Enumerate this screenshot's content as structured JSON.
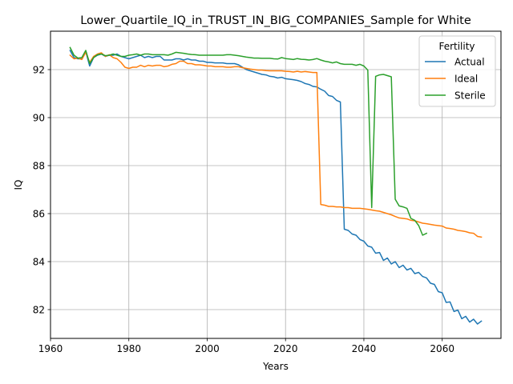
{
  "chart_data": {
    "type": "line",
    "title": "Lower_Quartile_IQ_in_TRUST_IN_BIG_COMPANIES_Sample for White",
    "xlabel": "Years",
    "ylabel": "IQ",
    "xlim": [
      1960,
      2075
    ],
    "ylim": [
      80.8,
      93.6
    ],
    "xticks": [
      1960,
      1980,
      2000,
      2020,
      2040,
      2060
    ],
    "yticks": [
      82,
      84,
      86,
      88,
      90,
      92
    ],
    "grid": true,
    "legend": {
      "title": "Fertility",
      "placement": "top-right"
    },
    "series": [
      {
        "name": "Actual",
        "color": "#1f77b4",
        "x": [
          1965,
          1966,
          1967,
          1968,
          1969,
          1970,
          1971,
          1972,
          1973,
          1974,
          1975,
          1976,
          1977,
          1978,
          1979,
          1980,
          1981,
          1982,
          1983,
          1984,
          1985,
          1986,
          1987,
          1988,
          1989,
          1990,
          1991,
          1992,
          1993,
          1994,
          1995,
          1996,
          1997,
          1998,
          1999,
          2000,
          2001,
          2002,
          2003,
          2004,
          2005,
          2006,
          2007,
          2008,
          2009,
          2010,
          2011,
          2012,
          2013,
          2014,
          2015,
          2016,
          2017,
          2018,
          2019,
          2020,
          2021,
          2022,
          2023,
          2024,
          2025,
          2026,
          2027,
          2028,
          2029,
          2030,
          2031,
          2032,
          2033,
          2034,
          2035,
          2036,
          2037,
          2038,
          2039,
          2040,
          2041,
          2042,
          2043,
          2044,
          2045,
          2046,
          2047,
          2048,
          2049,
          2050,
          2051,
          2052,
          2053,
          2054,
          2055,
          2056,
          2057,
          2058,
          2059,
          2060,
          2061,
          2062,
          2063,
          2064,
          2065,
          2066,
          2067,
          2068,
          2069,
          2070
        ],
        "y": [
          92.8,
          92.5,
          92.45,
          92.45,
          92.75,
          92.15,
          92.5,
          92.6,
          92.65,
          92.55,
          92.6,
          92.6,
          92.65,
          92.55,
          92.5,
          92.45,
          92.5,
          92.55,
          92.6,
          92.5,
          92.55,
          92.5,
          92.55,
          92.55,
          92.4,
          92.4,
          92.4,
          92.45,
          92.45,
          92.4,
          92.45,
          92.4,
          92.4,
          92.35,
          92.35,
          92.3,
          92.3,
          92.28,
          92.28,
          92.28,
          92.25,
          92.25,
          92.25,
          92.2,
          92.1,
          92.0,
          91.95,
          91.9,
          91.85,
          91.8,
          91.78,
          91.72,
          91.7,
          91.65,
          91.68,
          91.62,
          91.6,
          91.58,
          91.55,
          91.5,
          91.42,
          91.38,
          91.3,
          91.28,
          91.18,
          91.1,
          90.92,
          90.88,
          90.72,
          90.65,
          85.35,
          85.3,
          85.15,
          85.1,
          84.92,
          84.85,
          84.65,
          84.6,
          84.35,
          84.38,
          84.05,
          84.15,
          83.9,
          84.0,
          83.75,
          83.85,
          83.65,
          83.72,
          83.5,
          83.55,
          83.38,
          83.32,
          83.1,
          83.05,
          82.75,
          82.7,
          82.3,
          82.32,
          81.92,
          81.98,
          81.62,
          81.72,
          81.48,
          81.6,
          81.4,
          81.52
        ]
      },
      {
        "name": "Ideal",
        "color": "#ff7f0e",
        "x": [
          1965,
          1966,
          1967,
          1968,
          1969,
          1970,
          1971,
          1972,
          1973,
          1974,
          1975,
          1976,
          1977,
          1978,
          1979,
          1980,
          1981,
          1982,
          1983,
          1984,
          1985,
          1986,
          1987,
          1988,
          1989,
          1990,
          1991,
          1992,
          1993,
          1994,
          1995,
          1996,
          1997,
          1998,
          1999,
          2000,
          2001,
          2002,
          2003,
          2004,
          2005,
          2006,
          2007,
          2008,
          2009,
          2010,
          2011,
          2012,
          2013,
          2014,
          2015,
          2016,
          2017,
          2018,
          2019,
          2020,
          2021,
          2022,
          2023,
          2024,
          2025,
          2026,
          2027,
          2028,
          2029,
          2030,
          2031,
          2032,
          2033,
          2034,
          2035,
          2036,
          2037,
          2038,
          2039,
          2040,
          2041,
          2042,
          2043,
          2044,
          2045,
          2046,
          2047,
          2048,
          2049,
          2050,
          2051,
          2052,
          2053,
          2054,
          2055,
          2056,
          2057,
          2058,
          2059,
          2060,
          2061,
          2062,
          2063,
          2064,
          2065,
          2066,
          2067,
          2068,
          2069,
          2070
        ],
        "y": [
          92.6,
          92.45,
          92.48,
          92.42,
          92.72,
          92.3,
          92.55,
          92.65,
          92.7,
          92.55,
          92.62,
          92.5,
          92.45,
          92.3,
          92.1,
          92.05,
          92.1,
          92.1,
          92.18,
          92.12,
          92.18,
          92.15,
          92.18,
          92.18,
          92.12,
          92.15,
          92.22,
          92.25,
          92.35,
          92.35,
          92.25,
          92.25,
          92.2,
          92.2,
          92.18,
          92.15,
          92.15,
          92.12,
          92.12,
          92.12,
          92.1,
          92.1,
          92.12,
          92.12,
          92.08,
          92.05,
          92.02,
          92.0,
          91.98,
          91.98,
          91.96,
          91.95,
          91.95,
          91.95,
          91.95,
          91.93,
          91.92,
          91.9,
          91.93,
          91.9,
          91.92,
          91.9,
          91.88,
          91.88,
          86.38,
          86.35,
          86.3,
          86.3,
          86.28,
          86.28,
          86.25,
          86.25,
          86.22,
          86.22,
          86.22,
          86.2,
          86.18,
          86.15,
          86.12,
          86.1,
          86.05,
          86.0,
          85.95,
          85.88,
          85.82,
          85.8,
          85.78,
          85.72,
          85.7,
          85.65,
          85.6,
          85.58,
          85.55,
          85.52,
          85.5,
          85.48,
          85.4,
          85.38,
          85.35,
          85.3,
          85.28,
          85.25,
          85.2,
          85.18,
          85.05,
          85.02
        ]
      },
      {
        "name": "Sterile",
        "color": "#2ca02c",
        "x": [
          1965,
          1966,
          1967,
          1968,
          1969,
          1970,
          1971,
          1972,
          1973,
          1974,
          1975,
          1976,
          1977,
          1978,
          1979,
          1980,
          1981,
          1982,
          1983,
          1984,
          1985,
          1986,
          1987,
          1988,
          1989,
          1990,
          1991,
          1992,
          1993,
          1994,
          1995,
          1996,
          1997,
          1998,
          1999,
          2000,
          2001,
          2002,
          2003,
          2004,
          2005,
          2006,
          2007,
          2008,
          2009,
          2010,
          2011,
          2012,
          2013,
          2014,
          2015,
          2016,
          2017,
          2018,
          2019,
          2020,
          2021,
          2022,
          2023,
          2024,
          2025,
          2026,
          2027,
          2028,
          2029,
          2030,
          2031,
          2032,
          2033,
          2034,
          2035,
          2036,
          2037,
          2038,
          2039,
          2040,
          2041,
          2042,
          2043,
          2044,
          2045,
          2046,
          2047,
          2048,
          2049,
          2050,
          2051,
          2052,
          2053,
          2054,
          2055,
          2056
        ],
        "y": [
          92.92,
          92.6,
          92.48,
          92.5,
          92.8,
          92.25,
          92.5,
          92.62,
          92.65,
          92.58,
          92.6,
          92.65,
          92.6,
          92.55,
          92.55,
          92.6,
          92.62,
          92.65,
          92.6,
          92.65,
          92.65,
          92.62,
          92.62,
          92.62,
          92.62,
          92.6,
          92.65,
          92.72,
          92.7,
          92.68,
          92.65,
          92.63,
          92.62,
          92.6,
          92.6,
          92.6,
          92.6,
          92.6,
          92.6,
          92.6,
          92.62,
          92.62,
          92.6,
          92.58,
          92.55,
          92.52,
          92.5,
          92.48,
          92.48,
          92.47,
          92.47,
          92.47,
          92.45,
          92.44,
          92.5,
          92.46,
          92.44,
          92.42,
          92.46,
          92.43,
          92.42,
          92.4,
          92.42,
          92.46,
          92.4,
          92.35,
          92.32,
          92.28,
          92.32,
          92.25,
          92.22,
          92.22,
          92.22,
          92.18,
          92.22,
          92.15,
          91.98,
          86.25,
          91.72,
          91.78,
          91.8,
          91.75,
          91.7,
          86.6,
          86.32,
          86.28,
          86.22,
          85.8,
          85.72,
          85.5,
          85.1,
          85.18
        ]
      }
    ]
  }
}
